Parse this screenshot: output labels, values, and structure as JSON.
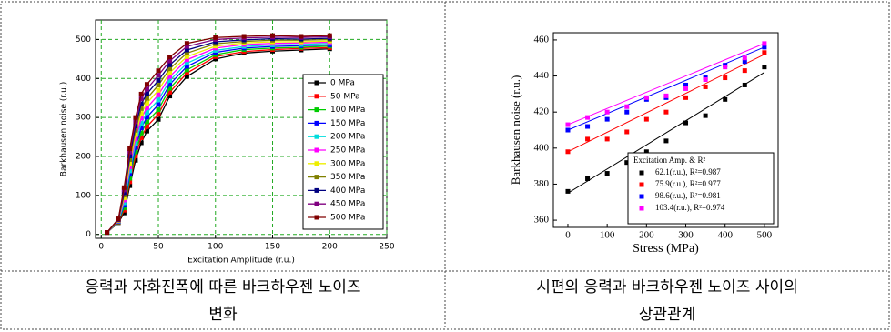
{
  "chart_data": [
    {
      "type": "line",
      "xlabel": "Excitation Amplitude (r.u.)",
      "ylabel": "Barkhausen noise (r.u.)",
      "x": [
        5,
        15,
        20,
        25,
        30,
        35,
        40,
        50,
        60,
        75,
        100,
        125,
        150,
        175,
        200
      ],
      "xlim": [
        -5,
        250
      ],
      "xticks": [
        0,
        50,
        100,
        150,
        200,
        250
      ],
      "ylim": [
        -10,
        550
      ],
      "yticks": [
        0,
        100,
        200,
        300,
        400,
        500
      ],
      "grid": true,
      "grid_color": "#22aa22",
      "legend": "right",
      "series": [
        {
          "name": "0 MPa",
          "color": "#000000",
          "values": [
            5,
            30,
            55,
            125,
            190,
            235,
            265,
            295,
            355,
            405,
            450,
            465,
            470,
            473,
            476
          ]
        },
        {
          "name": "50 MPa",
          "color": "#ff0000",
          "values": [
            5,
            31,
            62,
            135,
            201,
            248,
            277,
            308,
            365,
            414,
            456,
            469,
            474,
            477,
            479
          ]
        },
        {
          "name": "100 MPa",
          "color": "#00cc00",
          "values": [
            5,
            32,
            68,
            144,
            212,
            260,
            289,
            320,
            375,
            422,
            461,
            474,
            478,
            480,
            483
          ]
        },
        {
          "name": "150 MPa",
          "color": "#0000ff",
          "values": [
            5,
            33,
            75,
            154,
            223,
            273,
            301,
            333,
            385,
            431,
            467,
            478,
            482,
            484,
            486
          ]
        },
        {
          "name": "200 MPa",
          "color": "#00dddd",
          "values": [
            5,
            34,
            81,
            163,
            234,
            285,
            313,
            345,
            395,
            439,
            472,
            482,
            486,
            487,
            490
          ]
        },
        {
          "name": "250 MPa",
          "color": "#ff00ff",
          "values": [
            5,
            35,
            88,
            173,
            245,
            298,
            325,
            358,
            405,
            448,
            478,
            487,
            490,
            491,
            493
          ]
        },
        {
          "name": "300 MPa",
          "color": "#eeee00",
          "values": [
            5,
            36,
            94,
            182,
            256,
            310,
            337,
            370,
            415,
            456,
            483,
            491,
            494,
            494,
            496
          ]
        },
        {
          "name": "350 MPa",
          "color": "#808000",
          "values": [
            5,
            37,
            101,
            192,
            267,
            323,
            349,
            383,
            425,
            465,
            489,
            495,
            498,
            498,
            500
          ]
        },
        {
          "name": "400 MPa",
          "color": "#000080",
          "values": [
            5,
            38,
            107,
            201,
            278,
            335,
            361,
            395,
            435,
            473,
            494,
            499,
            502,
            501,
            503
          ]
        },
        {
          "name": "450 MPa",
          "color": "#800080",
          "values": [
            5,
            39,
            114,
            211,
            289,
            348,
            373,
            408,
            445,
            482,
            500,
            504,
            506,
            505,
            507
          ]
        },
        {
          "name": "500 MPa",
          "color": "#800000",
          "values": [
            5,
            40,
            120,
            220,
            300,
            360,
            385,
            420,
            455,
            490,
            505,
            508,
            510,
            508,
            510
          ]
        }
      ]
    },
    {
      "type": "scatter",
      "xlabel": "Stress (MPa)",
      "ylabel": "Barkhausen noise (r.u.)",
      "legend_title": "Excitation Amp. & R²",
      "x": [
        0,
        50,
        100,
        150,
        200,
        250,
        300,
        350,
        400,
        450,
        500
      ],
      "xlim": [
        -37,
        535
      ],
      "xticks": [
        0,
        100,
        200,
        300,
        400,
        500
      ],
      "ylim": [
        356,
        464
      ],
      "yticks": [
        360,
        380,
        400,
        420,
        440,
        460
      ],
      "grid": false,
      "legend": "lower right",
      "fit_x": [
        0,
        500
      ],
      "series": [
        {
          "name": "62.1(r.u.), R²=0.987",
          "color": "#000000",
          "values": [
            376,
            383,
            386,
            392,
            398,
            404,
            414,
            418,
            427,
            435,
            445
          ],
          "fit": [
            375,
            442
          ]
        },
        {
          "name": "75.9(r.u.), R²=0.977",
          "color": "#ff0000",
          "values": [
            398,
            405,
            405,
            409,
            416,
            420,
            428,
            434,
            439,
            443,
            453
          ],
          "fit": [
            398,
            452
          ]
        },
        {
          "name": "98.6(r.u.), R²=0.981",
          "color": "#0000ff",
          "values": [
            410,
            412,
            416,
            420,
            427,
            428,
            435,
            439,
            446,
            448,
            456
          ],
          "fit": [
            410,
            456
          ]
        },
        {
          "name": "103.4(r.u.), R²=0.974",
          "color": "#ff00ff",
          "values": [
            413,
            417,
            420,
            423,
            428,
            429,
            433,
            438,
            445,
            450,
            458
          ],
          "fit": [
            413,
            458
          ]
        }
      ]
    }
  ],
  "captions": [
    [
      "응력과 자화진폭에 따른 바크하우젠 노이즈",
      "변화"
    ],
    [
      "시편의 응력과 바크하우젠 노이즈 사이의",
      "상관관계"
    ]
  ]
}
